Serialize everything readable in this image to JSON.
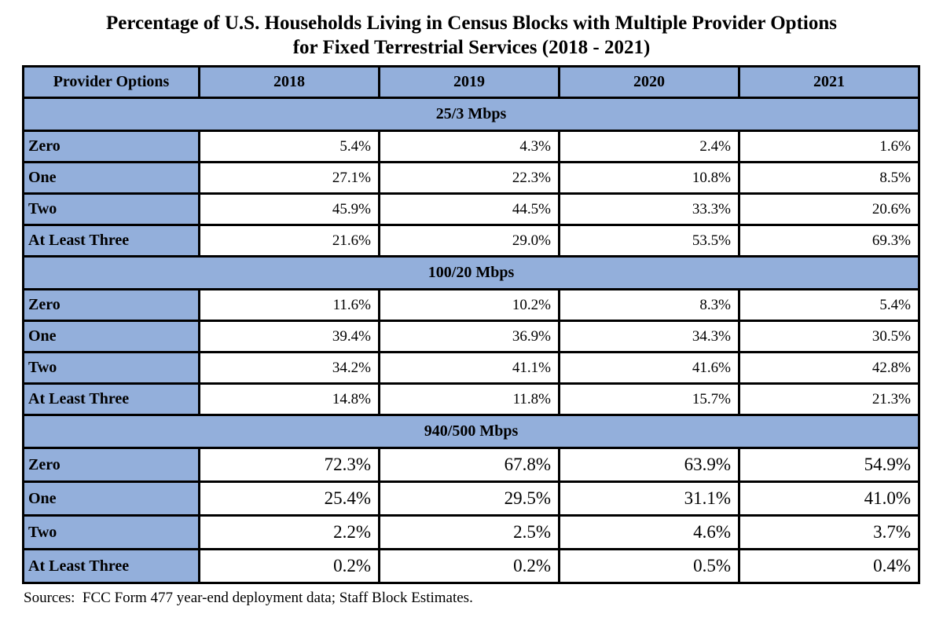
{
  "title": {
    "line1": "Percentage of U.S. Households Living in Census Blocks with Multiple Provider Options",
    "line2": "for Fixed Terrestrial Services (2018 - 2021)"
  },
  "table": {
    "header": [
      "Provider Options",
      "2018",
      "2019",
      "2020",
      "2021"
    ],
    "sections": [
      {
        "label": "25/3 Mbps",
        "rows": [
          {
            "label": "Zero",
            "values": [
              "5.4%",
              "4.3%",
              "2.4%",
              "1.6%"
            ]
          },
          {
            "label": "One",
            "values": [
              "27.1%",
              "22.3%",
              "10.8%",
              "8.5%"
            ]
          },
          {
            "label": "Two",
            "values": [
              "45.9%",
              "44.5%",
              "33.3%",
              "20.6%"
            ]
          },
          {
            "label": "At Least Three",
            "values": [
              "21.6%",
              "29.0%",
              "53.5%",
              "69.3%"
            ]
          }
        ]
      },
      {
        "label": "100/20 Mbps",
        "rows": [
          {
            "label": "Zero",
            "values": [
              "11.6%",
              "10.2%",
              "8.3%",
              "5.4%"
            ]
          },
          {
            "label": "One",
            "values": [
              "39.4%",
              "36.9%",
              "34.3%",
              "30.5%"
            ]
          },
          {
            "label": "Two",
            "values": [
              "34.2%",
              "41.1%",
              "41.6%",
              "42.8%"
            ]
          },
          {
            "label": "At Least Three",
            "values": [
              "14.8%",
              "11.8%",
              "15.7%",
              "21.3%"
            ]
          }
        ]
      },
      {
        "label": "940/500 Mbps",
        "rows": [
          {
            "label": "Zero",
            "values": [
              "72.3%",
              "67.8%",
              "63.9%",
              "54.9%"
            ]
          },
          {
            "label": "One",
            "values": [
              "25.4%",
              "29.5%",
              "31.1%",
              "41.0%"
            ]
          },
          {
            "label": "Two",
            "values": [
              "2.2%",
              "2.5%",
              "4.6%",
              "3.7%"
            ]
          },
          {
            "label": "At Least Three",
            "values": [
              "0.2%",
              "0.2%",
              "0.5%",
              "0.4%"
            ]
          }
        ]
      }
    ]
  },
  "footer": {
    "sources": "Sources:  FCC Form 477 year-end deployment data; Staff Block Estimates."
  },
  "colors": {
    "header_fill": "#93AFDB",
    "border": "#000000",
    "background": "#FFFFFF"
  }
}
